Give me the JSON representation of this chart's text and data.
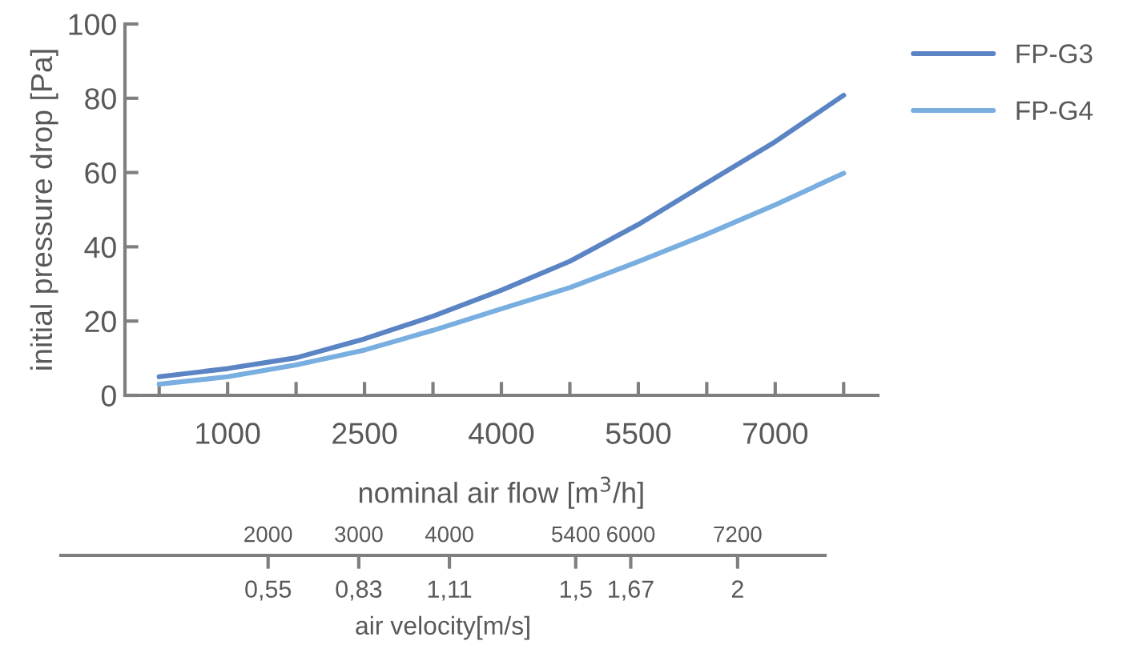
{
  "chart_data": {
    "type": "line",
    "xlabel": "nominal air flow [m$^{3}$/h]",
    "ylabel": "initial pressure drop [Pa]",
    "x": [
      250,
      1000,
      1750,
      2500,
      3250,
      4000,
      4750,
      5500,
      6250,
      7000,
      7750
    ],
    "series": [
      {
        "name": "FP-G3",
        "color": "#5b84c4",
        "values": [
          5,
          7.2,
          10.1,
          15.2,
          21.3,
          28.3,
          36.1,
          46,
          57.2,
          68.3,
          80.8
        ]
      },
      {
        "name": "FP-G4",
        "color": "#79aee0",
        "values": [
          3,
          5,
          8.2,
          12.2,
          17.5,
          23.3,
          29,
          36,
          43.4,
          51.3,
          59.8
        ]
      }
    ],
    "xlim": [
      -125,
      8125
    ],
    "xticks": [
      {
        "value": 250,
        "label": null
      },
      1000,
      {
        "value": 1750,
        "label": null
      },
      2500,
      {
        "value": 3250,
        "label": null
      },
      4000,
      {
        "value": 4750,
        "label": null
      },
      5500,
      {
        "value": 6250,
        "label": null
      },
      7000,
      {
        "value": 7750,
        "label": null
      }
    ],
    "ylim": [
      0,
      100
    ],
    "yticks": [
      0,
      20,
      40,
      60,
      80,
      100
    ],
    "x2label": "air velocity[m/s]",
    "x2lim": [
      -0.09,
      2.27
    ],
    "x2ticks": [
      {
        "value": 0.55,
        "label": "0,55"
      },
      {
        "value": 0.83,
        "label": "0,83"
      },
      {
        "value": 1.11,
        "label": "1,11"
      },
      {
        "value": 1.5,
        "label": "1,5"
      },
      {
        "value": 1.67,
        "label": "1,67"
      },
      {
        "value": 2,
        "label": "2"
      }
    ],
    "annotations": [
      "2000",
      "3000",
      "4000",
      "5400",
      "6000",
      "7200"
    ],
    "legend": "top right",
    "grid": false,
    "marker": "none",
    "line_style": "solid"
  }
}
